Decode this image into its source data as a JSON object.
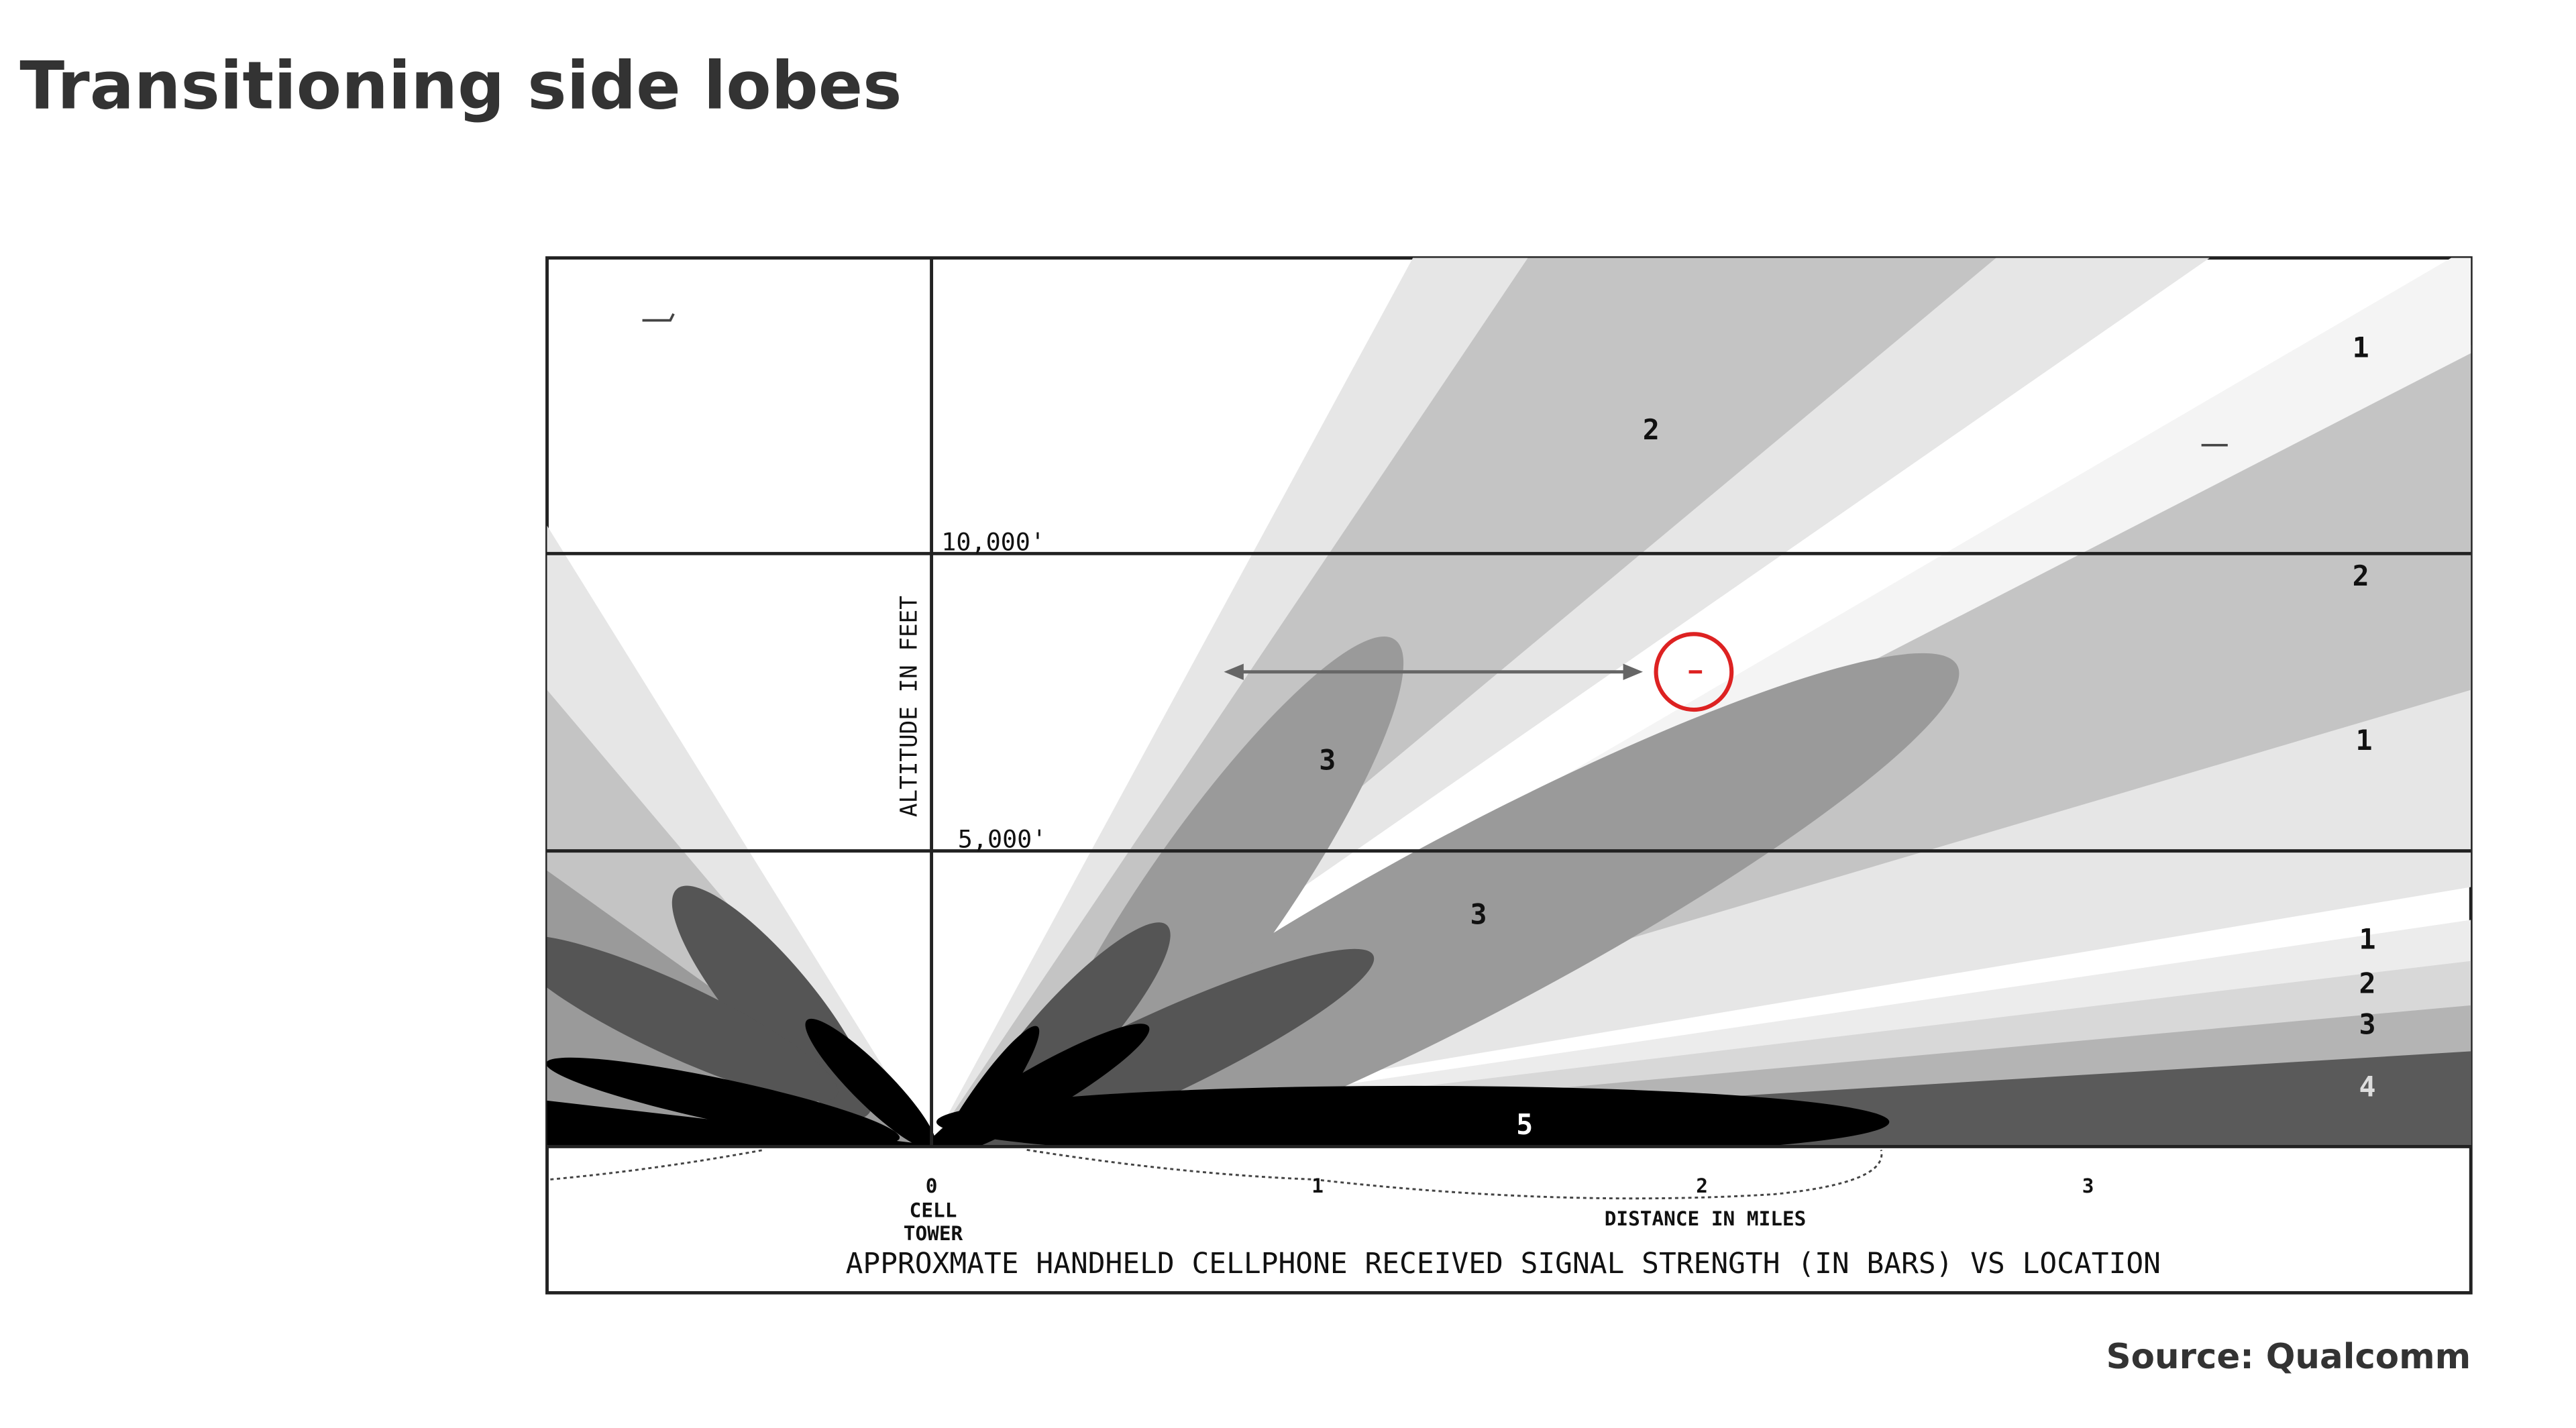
{
  "header": {
    "title": "Transitioning side lobes"
  },
  "diagram": {
    "altitude_labels": [
      "10,000'",
      "5,000'"
    ],
    "altitude_axis_label": "ALTITUDE IN FEET",
    "distance_ticks": [
      "0",
      "1",
      "2",
      "3"
    ],
    "tower_label": [
      "CELL",
      "TOWER"
    ],
    "distance_axis_label": "DISTANCE IN MILES",
    "caption": "APPROXMATE HANDHELD CELLPHONE RECEIVED SIGNAL STRENGTH (IN BARS) VS LOCATION",
    "region_labels": [
      "1",
      "2",
      "2",
      "3",
      "1",
      "3",
      "1",
      "2",
      "3",
      "4",
      "5"
    ]
  },
  "footer": {
    "source": "Source: Qualcomm"
  }
}
